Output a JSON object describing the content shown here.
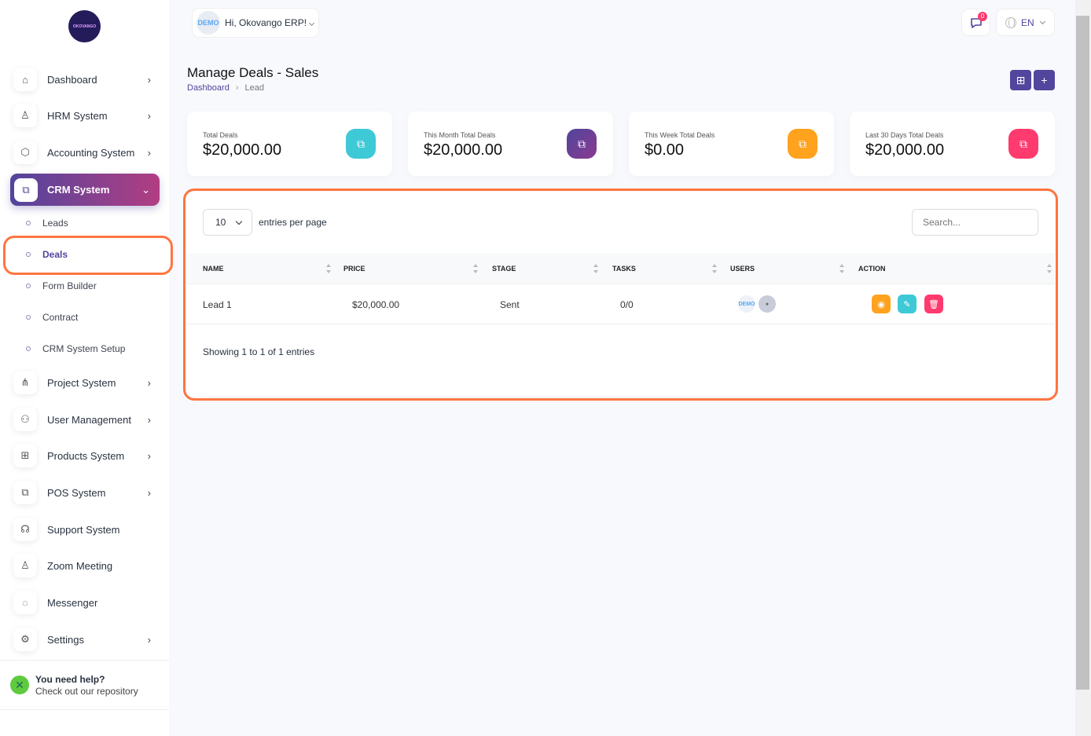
{
  "logo_text": "OKOVANGO",
  "sidebar": {
    "items": [
      {
        "label": "Dashboard",
        "icon": "home-icon",
        "chevron": true
      },
      {
        "label": "HRM System",
        "icon": "user-icon",
        "chevron": true
      },
      {
        "label": "Accounting System",
        "icon": "box-icon",
        "chevron": true
      },
      {
        "label": "CRM System",
        "icon": "layers-icon",
        "chevron": true,
        "active": true
      },
      {
        "label": "Project System",
        "icon": "share-icon",
        "chevron": true
      },
      {
        "label": "User Management",
        "icon": "users-icon",
        "chevron": true
      },
      {
        "label": "Products System",
        "icon": "cart-icon",
        "chevron": true
      },
      {
        "label": "POS System",
        "icon": "layers-icon",
        "chevron": true
      },
      {
        "label": "Support System",
        "icon": "headphones-icon",
        "chevron": false
      },
      {
        "label": "Zoom Meeting",
        "icon": "user-check-icon",
        "chevron": false
      },
      {
        "label": "Messenger",
        "icon": "message-icon",
        "chevron": false
      },
      {
        "label": "Settings",
        "icon": "gear-icon",
        "chevron": true
      }
    ],
    "crm_sub": [
      "Leads",
      "Deals",
      "Form Builder",
      "Contract",
      "CRM System Setup"
    ],
    "help_title": "You need help?",
    "help_text": "Check out our repository"
  },
  "header": {
    "avatar_text": "DEMO",
    "greeting": "Hi, Okovango ERP!",
    "notifications": "0",
    "language": "EN"
  },
  "page": {
    "title": "Manage Deals - Sales",
    "breadcrumb": [
      "Dashboard",
      "Lead"
    ]
  },
  "cards": [
    {
      "label": "Total Deals",
      "value": "$20,000.00",
      "color": "#3ec9d6"
    },
    {
      "label": "This Month Total Deals",
      "value": "$20,000.00",
      "color": "#6f3b9f"
    },
    {
      "label": "This Week Total Deals",
      "value": "$0.00",
      "color": "#ffa21d"
    },
    {
      "label": "Last 30 Days Total Deals",
      "value": "$20,000.00",
      "color": "#ff3a6e"
    }
  ],
  "table": {
    "per_page": "10",
    "per_page_label": "entries per page",
    "search_placeholder": "Search...",
    "columns": [
      "NAME",
      "PRICE",
      "STAGE",
      "TASKS",
      "USERS",
      "ACTION"
    ],
    "rows": [
      {
        "name": "Lead 1",
        "price": "$20,000.00",
        "stage": "Sent",
        "tasks": "0/0",
        "users": [
          "DEMO",
          ""
        ]
      }
    ],
    "info": "Showing 1 to 1 of 1 entries"
  }
}
